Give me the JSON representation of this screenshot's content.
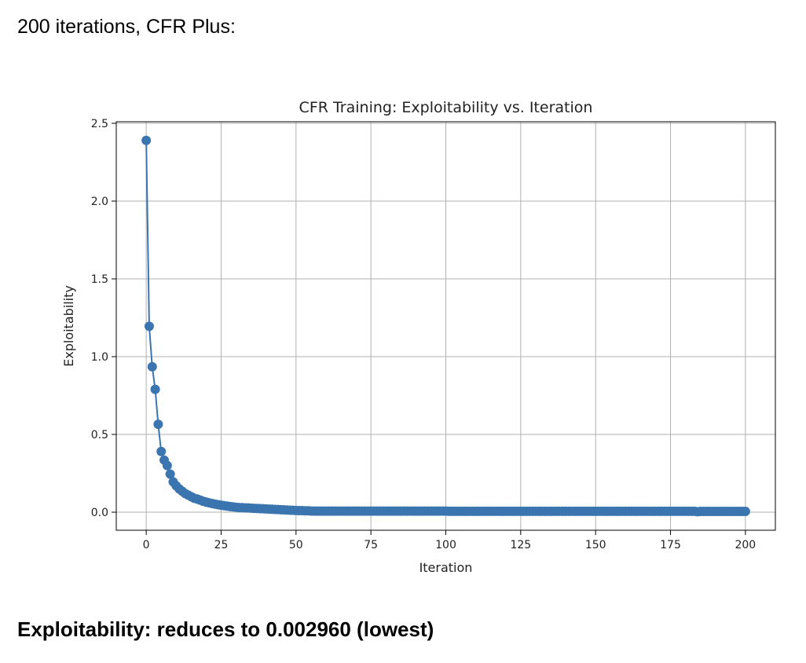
{
  "heading": "200 iterations, CFR Plus:",
  "chart_data": {
    "type": "line",
    "title": "CFR Training: Exploitability vs. Iteration",
    "x_label": "Iteration",
    "y_label": "Exploitability",
    "x": [
      0,
      1,
      2,
      3,
      4,
      5,
      6,
      7,
      8,
      9,
      10,
      11,
      12,
      13,
      14,
      15,
      16,
      17,
      18,
      19,
      20,
      21,
      22,
      23,
      24,
      25,
      26,
      27,
      28,
      29,
      30,
      31,
      32,
      33,
      34,
      35,
      36,
      37,
      38,
      39,
      40,
      41,
      42,
      43,
      44,
      45,
      46,
      47,
      48,
      49,
      50,
      51,
      52,
      53,
      54,
      55,
      56,
      57,
      58,
      59,
      60,
      61,
      62,
      63,
      64,
      65,
      66,
      67,
      68,
      69,
      70,
      71,
      72,
      73,
      74,
      75,
      76,
      77,
      78,
      79,
      80,
      81,
      82,
      83,
      84,
      85,
      86,
      87,
      88,
      89,
      90,
      91,
      92,
      93,
      94,
      95,
      96,
      97,
      98,
      99,
      100,
      101,
      102,
      103,
      104,
      105,
      106,
      107,
      108,
      109,
      110,
      111,
      112,
      113,
      114,
      115,
      116,
      117,
      118,
      119,
      120,
      121,
      122,
      123,
      124,
      125,
      126,
      127,
      128,
      129,
      130,
      131,
      132,
      133,
      134,
      135,
      136,
      137,
      138,
      139,
      140,
      141,
      142,
      143,
      144,
      145,
      146,
      147,
      148,
      149,
      150,
      151,
      152,
      153,
      154,
      155,
      156,
      157,
      158,
      159,
      160,
      161,
      162,
      163,
      164,
      165,
      166,
      167,
      168,
      169,
      170,
      171,
      172,
      173,
      174,
      175,
      176,
      177,
      178,
      179,
      180,
      181,
      182,
      183,
      184,
      185,
      186,
      187,
      188,
      189,
      190,
      191,
      192,
      193,
      194,
      195,
      196,
      197,
      198,
      199,
      200
    ],
    "values": [
      2.39,
      1.195,
      0.935,
      0.79,
      0.565,
      0.39,
      0.335,
      0.3,
      0.245,
      0.195,
      0.17,
      0.15,
      0.135,
      0.12,
      0.11,
      0.1,
      0.09,
      0.085,
      0.078,
      0.07,
      0.065,
      0.06,
      0.056,
      0.052,
      0.048,
      0.045,
      0.042,
      0.039,
      0.036,
      0.034,
      0.032,
      0.03,
      0.029,
      0.028,
      0.027,
      0.026,
      0.025,
      0.024,
      0.023,
      0.022,
      0.021,
      0.02,
      0.019,
      0.018,
      0.017,
      0.016,
      0.015,
      0.014,
      0.013,
      0.012,
      0.011,
      0.01,
      0.01,
      0.009,
      0.009,
      0.008,
      0.007,
      0.007,
      0.007,
      0.007,
      0.007,
      0.007,
      0.007,
      0.007,
      0.007,
      0.007,
      0.007,
      0.007,
      0.007,
      0.007,
      0.007,
      0.007,
      0.007,
      0.007,
      0.007,
      0.007,
      0.007,
      0.007,
      0.007,
      0.007,
      0.007,
      0.007,
      0.007,
      0.007,
      0.007,
      0.007,
      0.007,
      0.007,
      0.007,
      0.007,
      0.007,
      0.007,
      0.007,
      0.007,
      0.007,
      0.007,
      0.007,
      0.007,
      0.007,
      0.007,
      0.007,
      0.006,
      0.006,
      0.006,
      0.006,
      0.006,
      0.006,
      0.006,
      0.006,
      0.006,
      0.006,
      0.006,
      0.006,
      0.006,
      0.006,
      0.006,
      0.006,
      0.006,
      0.006,
      0.006,
      0.006,
      0.006,
      0.006,
      0.006,
      0.006,
      0.006,
      0.006,
      0.006,
      0.006,
      0.006,
      0.006,
      0.006,
      0.006,
      0.006,
      0.006,
      0.006,
      0.006,
      0.006,
      0.006,
      0.006,
      0.006,
      0.006,
      0.006,
      0.006,
      0.006,
      0.006,
      0.006,
      0.006,
      0.006,
      0.006,
      0.006,
      0.006,
      0.006,
      0.006,
      0.006,
      0.006,
      0.006,
      0.006,
      0.006,
      0.006,
      0.006,
      0.006,
      0.006,
      0.006,
      0.006,
      0.006,
      0.006,
      0.006,
      0.006,
      0.006,
      0.006,
      0.006,
      0.006,
      0.006,
      0.006,
      0.006,
      0.006,
      0.006,
      0.006,
      0.006,
      0.006,
      0.006,
      0.006,
      0.006,
      0.003,
      0.005,
      0.005,
      0.005,
      0.005,
      0.005,
      0.005,
      0.005,
      0.005,
      0.005,
      0.005,
      0.005,
      0.005,
      0.005,
      0.005,
      0.005,
      0.005
    ],
    "color": "#3b75af",
    "xlim": [
      -10,
      210
    ],
    "xticks": [
      0,
      25,
      50,
      75,
      100,
      125,
      150,
      175,
      200
    ],
    "ylim": [
      -0.116,
      2.51
    ],
    "yticks": [
      {
        "value": 0,
        "label": "0.0"
      },
      0.5,
      {
        "value": 1,
        "label": "1.0"
      },
      1.5,
      {
        "value": 2,
        "label": "2.0"
      },
      2.5
    ],
    "grid": true
  },
  "caption": "Exploitability: reduces to 0.002960 (lowest)"
}
